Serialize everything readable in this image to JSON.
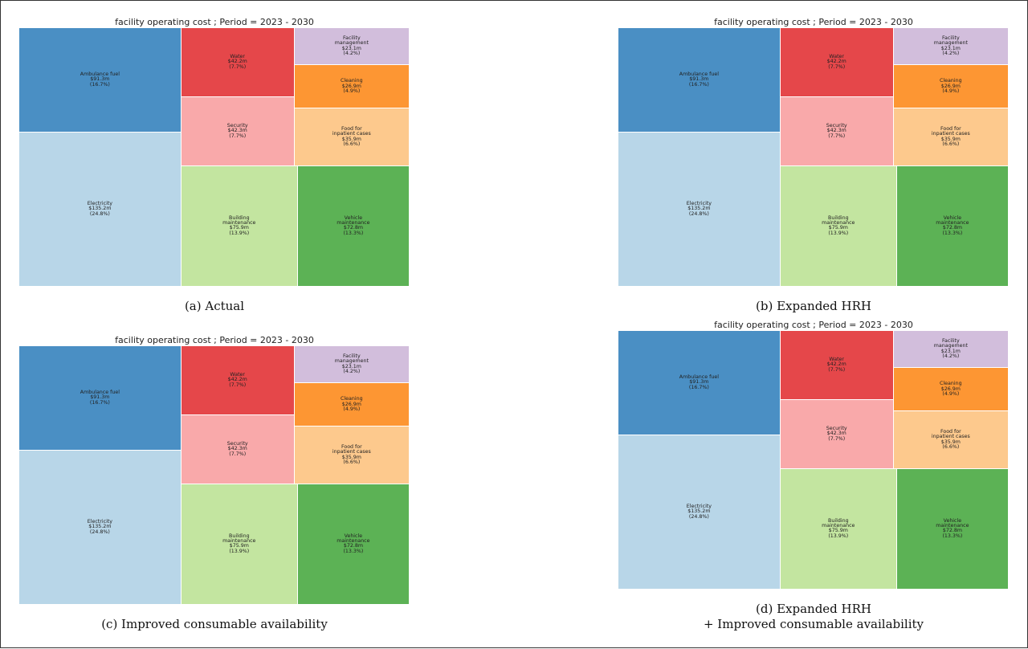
{
  "chart_data": [
    {
      "type": "treemap",
      "title": "facility operating cost ; Period = 2023 - 2030",
      "caption_lines": [
        "(a) Actual"
      ],
      "items": [
        {
          "label": "Ambulance fuel",
          "value_text": "$91.3m",
          "pct_text": "(16.7%)",
          "value": 91.3,
          "color": "#4a8fc4"
        },
        {
          "label": "Electricity",
          "value_text": "$135.2m",
          "pct_text": "(24.8%)",
          "value": 135.2,
          "color": "#b8d6e8"
        },
        {
          "label": "Water",
          "value_text": "$42.2m",
          "pct_text": "(7.7%)",
          "value": 42.2,
          "color": "#e5474a"
        },
        {
          "label": "Security",
          "value_text": "$42.3m",
          "pct_text": "(7.7%)",
          "value": 42.3,
          "color": "#f9a9aa"
        },
        {
          "label": "Building\nmaintenance",
          "value_text": "$75.9m",
          "pct_text": "(13.9%)",
          "value": 75.9,
          "color": "#c3e5a0"
        },
        {
          "label": "Facility\nmanagement",
          "value_text": "$23.1m",
          "pct_text": "(4.2%)",
          "value": 23.1,
          "color": "#d2bedc"
        },
        {
          "label": "Cleaning",
          "value_text": "$26.9m",
          "pct_text": "(4.9%)",
          "value": 26.9,
          "color": "#fd9633"
        },
        {
          "label": "Food for\ninpatient cases",
          "value_text": "$35.9m",
          "pct_text": "(6.6%)",
          "value": 35.9,
          "color": "#fdc98d"
        },
        {
          "label": "Vehicle\nmaintenance",
          "value_text": "$72.8m",
          "pct_text": "(13.3%)",
          "value": 72.8,
          "color": "#5cb255"
        }
      ]
    },
    {
      "type": "treemap",
      "title": "facility operating cost ; Period = 2023 - 2030",
      "caption_lines": [
        "(b) Expanded HRH"
      ],
      "items": [
        {
          "label": "Ambulance fuel",
          "value_text": "$91.3m",
          "pct_text": "(16.7%)",
          "value": 91.3,
          "color": "#4a8fc4"
        },
        {
          "label": "Electricity",
          "value_text": "$135.2m",
          "pct_text": "(24.8%)",
          "value": 135.2,
          "color": "#b8d6e8"
        },
        {
          "label": "Water",
          "value_text": "$42.2m",
          "pct_text": "(7.7%)",
          "value": 42.2,
          "color": "#e5474a"
        },
        {
          "label": "Security",
          "value_text": "$42.3m",
          "pct_text": "(7.7%)",
          "value": 42.3,
          "color": "#f9a9aa"
        },
        {
          "label": "Building\nmaintenance",
          "value_text": "$75.9m",
          "pct_text": "(13.9%)",
          "value": 75.9,
          "color": "#c3e5a0"
        },
        {
          "label": "Facility\nmanagement",
          "value_text": "$23.1m",
          "pct_text": "(4.2%)",
          "value": 23.1,
          "color": "#d2bedc"
        },
        {
          "label": "Cleaning",
          "value_text": "$26.9m",
          "pct_text": "(4.9%)",
          "value": 26.9,
          "color": "#fd9633"
        },
        {
          "label": "Food for\ninpatient cases",
          "value_text": "$35.9m",
          "pct_text": "(6.6%)",
          "value": 35.9,
          "color": "#fdc98d"
        },
        {
          "label": "Vehicle\nmaintenance",
          "value_text": "$72.8m",
          "pct_text": "(13.3%)",
          "value": 72.8,
          "color": "#5cb255"
        }
      ]
    },
    {
      "type": "treemap",
      "title": "facility operating cost ; Period = 2023 - 2030",
      "caption_lines": [
        "(c) Improved consumable availability"
      ],
      "items": [
        {
          "label": "Ambulance fuel",
          "value_text": "$91.3m",
          "pct_text": "(16.7%)",
          "value": 91.3,
          "color": "#4a8fc4"
        },
        {
          "label": "Electricity",
          "value_text": "$135.2m",
          "pct_text": "(24.8%)",
          "value": 135.2,
          "color": "#b8d6e8"
        },
        {
          "label": "Water",
          "value_text": "$42.2m",
          "pct_text": "(7.7%)",
          "value": 42.2,
          "color": "#e5474a"
        },
        {
          "label": "Security",
          "value_text": "$42.3m",
          "pct_text": "(7.7%)",
          "value": 42.3,
          "color": "#f9a9aa"
        },
        {
          "label": "Building\nmaintenance",
          "value_text": "$75.9m",
          "pct_text": "(13.9%)",
          "value": 75.9,
          "color": "#c3e5a0"
        },
        {
          "label": "Facility\nmanagement",
          "value_text": "$23.1m",
          "pct_text": "(4.2%)",
          "value": 23.1,
          "color": "#d2bedc"
        },
        {
          "label": "Cleaning",
          "value_text": "$26.9m",
          "pct_text": "(4.9%)",
          "value": 26.9,
          "color": "#fd9633"
        },
        {
          "label": "Food for\ninpatient cases",
          "value_text": "$35.9m",
          "pct_text": "(6.6%)",
          "value": 35.9,
          "color": "#fdc98d"
        },
        {
          "label": "Vehicle\nmaintenance",
          "value_text": "$72.8m",
          "pct_text": "(13.3%)",
          "value": 72.8,
          "color": "#5cb255"
        }
      ]
    },
    {
      "type": "treemap",
      "title": "facility operating cost ; Period = 2023 - 2030",
      "caption_lines": [
        "(d) Expanded HRH",
        "+ Improved consumable availability"
      ],
      "items": [
        {
          "label": "Ambulance fuel",
          "value_text": "$91.3m",
          "pct_text": "(16.7%)",
          "value": 91.3,
          "color": "#4a8fc4"
        },
        {
          "label": "Electricity",
          "value_text": "$135.2m",
          "pct_text": "(24.8%)",
          "value": 135.2,
          "color": "#b8d6e8"
        },
        {
          "label": "Water",
          "value_text": "$42.2m",
          "pct_text": "(7.7%)",
          "value": 42.2,
          "color": "#e5474a"
        },
        {
          "label": "Security",
          "value_text": "$42.3m",
          "pct_text": "(7.7%)",
          "value": 42.3,
          "color": "#f9a9aa"
        },
        {
          "label": "Building\nmaintenance",
          "value_text": "$75.9m",
          "pct_text": "(13.9%)",
          "value": 75.9,
          "color": "#c3e5a0"
        },
        {
          "label": "Facility\nmanagement",
          "value_text": "$23.1m",
          "pct_text": "(4.2%)",
          "value": 23.1,
          "color": "#d2bedc"
        },
        {
          "label": "Cleaning",
          "value_text": "$26.9m",
          "pct_text": "(4.9%)",
          "value": 26.9,
          "color": "#fd9633"
        },
        {
          "label": "Food for\ninpatient cases",
          "value_text": "$35.9m",
          "pct_text": "(6.6%)",
          "value": 35.9,
          "color": "#fdc98d"
        },
        {
          "label": "Vehicle\nmaintenance",
          "value_text": "$72.8m",
          "pct_text": "(13.3%)",
          "value": 72.8,
          "color": "#5cb255"
        }
      ]
    }
  ]
}
